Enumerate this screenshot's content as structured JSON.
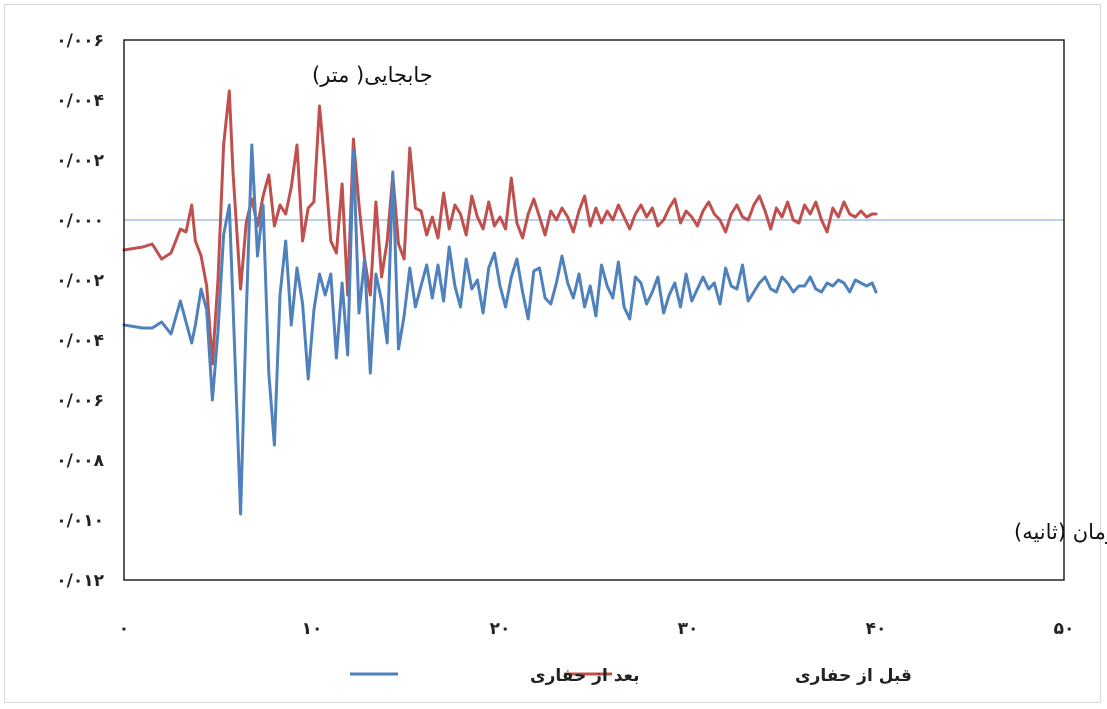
{
  "chart_data": {
    "type": "line",
    "y_annotation": "جابجایی( متر)",
    "x_annotation": "زمان (ثانیه)",
    "x_range": [
      0,
      50
    ],
    "y_range": [
      -0.012,
      0.006
    ],
    "x_ticks": [
      0,
      10,
      20,
      30,
      40,
      50
    ],
    "x_tick_labels": [
      "۰",
      "۱۰",
      "۲۰",
      "۳۰",
      "۴۰",
      "۵۰"
    ],
    "y_ticks": [
      0.006,
      0.004,
      0.002,
      0.0,
      -0.002,
      -0.004,
      -0.006,
      -0.008,
      -0.01,
      -0.012
    ],
    "y_tick_labels": [
      "۰/۰۰۶",
      "۰/۰۰۴",
      "۰/۰۰۲",
      "۰/۰۰۰",
      "۰/۰۰۲",
      "۰/۰۰۴",
      "۰/۰۰۶",
      "۰/۰۰۸",
      "۰/۰۱۰",
      "۰/۰۱۲"
    ],
    "zero_line_color": "#8eb4e3",
    "grid": false,
    "legend_position": "bottom",
    "series": [
      {
        "name": "قبل از حفاری",
        "color": "#c0504d",
        "x": [
          0,
          1,
          1.5,
          2,
          2.5,
          3,
          3.3,
          3.6,
          3.8,
          4.1,
          4.4,
          4.7,
          5.0,
          5.3,
          5.6,
          5.8,
          6.2,
          6.5,
          6.8,
          7.1,
          7.4,
          7.7,
          8.0,
          8.3,
          8.6,
          8.9,
          9.2,
          9.5,
          9.8,
          10.1,
          10.4,
          10.7,
          11.0,
          11.3,
          11.6,
          11.9,
          12.2,
          12.5,
          12.8,
          13.1,
          13.4,
          13.7,
          14.0,
          14.3,
          14.6,
          14.9,
          15.2,
          15.5,
          15.8,
          16.1,
          16.4,
          16.7,
          17.0,
          17.3,
          17.6,
          17.9,
          18.2,
          18.5,
          18.8,
          19.1,
          19.4,
          19.7,
          20.0,
          20.3,
          20.6,
          20.9,
          21.2,
          21.5,
          21.8,
          22.1,
          22.4,
          22.7,
          23.0,
          23.3,
          23.6,
          23.9,
          24.2,
          24.5,
          24.8,
          25.1,
          25.4,
          25.7,
          26.0,
          26.3,
          26.6,
          26.9,
          27.2,
          27.5,
          27.8,
          28.1,
          28.4,
          28.7,
          29.0,
          29.3,
          29.6,
          29.9,
          30.2,
          30.5,
          30.8,
          31.1,
          31.4,
          31.7,
          32.0,
          32.3,
          32.6,
          32.9,
          33.2,
          33.5,
          33.8,
          34.1,
          34.4,
          34.7,
          35.0,
          35.3,
          35.6,
          35.9,
          36.2,
          36.5,
          36.8,
          37.1,
          37.4,
          37.7,
          38.0,
          38.3,
          38.6,
          38.9,
          39.2,
          39.5,
          39.8,
          40.0
        ],
        "y": [
          -0.001,
          -0.0009,
          -0.0008,
          -0.0013,
          -0.0011,
          -0.0003,
          -0.0004,
          0.0005,
          -0.0007,
          -0.0012,
          -0.0022,
          -0.0048,
          -0.002,
          0.0025,
          0.0043,
          0.0016,
          -0.0023,
          -0.0001,
          0.0007,
          -0.0002,
          0.0008,
          0.0015,
          -0.0002,
          0.0005,
          0.0002,
          0.0011,
          0.0025,
          -0.0007,
          0.0004,
          0.0006,
          0.0038,
          0.0017,
          -0.0007,
          -0.0011,
          0.0012,
          -0.0025,
          0.0027,
          0.0005,
          -0.0013,
          -0.0025,
          0.0006,
          -0.0019,
          -0.0007,
          0.0015,
          -0.0008,
          -0.0013,
          0.0024,
          0.0004,
          0.0003,
          -0.0005,
          0.0001,
          -0.0006,
          0.0009,
          -0.0003,
          0.0005,
          0.0002,
          -0.0005,
          0.0008,
          0.0001,
          -0.0003,
          0.0006,
          -0.0002,
          0.0001,
          -0.0003,
          0.0014,
          -0.0001,
          -0.0006,
          0.0002,
          0.0007,
          0.0001,
          -0.0005,
          0.0003,
          0.0,
          0.0004,
          0.0001,
          -0.0004,
          0.0003,
          0.0008,
          -0.0002,
          0.0004,
          -0.0001,
          0.0003,
          0.0,
          0.0005,
          0.0001,
          -0.0003,
          0.0002,
          0.0005,
          0.0001,
          0.0004,
          -0.0002,
          0.0,
          0.0004,
          0.0007,
          -0.0001,
          0.0003,
          0.0001,
          -0.0002,
          0.0003,
          0.0006,
          0.0002,
          0.0,
          -0.0004,
          0.0002,
          0.0005,
          0.0001,
          0.0,
          0.0005,
          0.0008,
          0.0003,
          -0.0003,
          0.0004,
          0.0001,
          0.0006,
          0.0,
          -0.0001,
          0.0005,
          0.0002,
          0.0006,
          0.0,
          -0.0004,
          0.0004,
          0.0001,
          0.0006,
          0.0002,
          0.0001,
          0.0003,
          0.0001,
          0.0002,
          0.0002
        ]
      },
      {
        "name": "بعد از حفاری",
        "color": "#4f81bd",
        "x": [
          0,
          1,
          1.5,
          2,
          2.5,
          3,
          3.3,
          3.6,
          3.8,
          4.1,
          4.4,
          4.7,
          5.0,
          5.3,
          5.6,
          5.8,
          6.2,
          6.5,
          6.8,
          7.1,
          7.4,
          7.7,
          8.0,
          8.3,
          8.6,
          8.9,
          9.2,
          9.5,
          9.8,
          10.1,
          10.4,
          10.7,
          11.0,
          11.3,
          11.6,
          11.9,
          12.2,
          12.5,
          12.8,
          13.1,
          13.4,
          13.7,
          14.0,
          14.3,
          14.6,
          14.9,
          15.2,
          15.5,
          15.8,
          16.1,
          16.4,
          16.7,
          17.0,
          17.3,
          17.6,
          17.9,
          18.2,
          18.5,
          18.8,
          19.1,
          19.4,
          19.7,
          20.0,
          20.3,
          20.6,
          20.9,
          21.2,
          21.5,
          21.8,
          22.1,
          22.4,
          22.7,
          23.0,
          23.3,
          23.6,
          23.9,
          24.2,
          24.5,
          24.8,
          25.1,
          25.4,
          25.7,
          26.0,
          26.3,
          26.6,
          26.9,
          27.2,
          27.5,
          27.8,
          28.1,
          28.4,
          28.7,
          29.0,
          29.3,
          29.6,
          29.9,
          30.2,
          30.5,
          30.8,
          31.1,
          31.4,
          31.7,
          32.0,
          32.3,
          32.6,
          32.9,
          33.2,
          33.5,
          33.8,
          34.1,
          34.4,
          34.7,
          35.0,
          35.3,
          35.6,
          35.9,
          36.2,
          36.5,
          36.8,
          37.1,
          37.4,
          37.7,
          38.0,
          38.3,
          38.6,
          38.9,
          39.2,
          39.5,
          39.8,
          40.0
        ],
        "y": [
          -0.0035,
          -0.0036,
          -0.0036,
          -0.0034,
          -0.0038,
          -0.0027,
          -0.0034,
          -0.0041,
          -0.0035,
          -0.0023,
          -0.003,
          -0.006,
          -0.0037,
          -0.0005,
          0.0005,
          -0.0028,
          -0.0098,
          -0.0032,
          0.0025,
          -0.0012,
          0.0005,
          -0.0051,
          -0.0075,
          -0.0025,
          -0.0007,
          -0.0035,
          -0.0016,
          -0.0028,
          -0.0053,
          -0.003,
          -0.0018,
          -0.0025,
          -0.0018,
          -0.0046,
          -0.0021,
          -0.0045,
          0.0023,
          -0.0031,
          -0.0013,
          -0.0051,
          -0.0018,
          -0.0027,
          -0.0041,
          0.0016,
          -0.0043,
          -0.0032,
          -0.0016,
          -0.0029,
          -0.0022,
          -0.0015,
          -0.0026,
          -0.0015,
          -0.0027,
          -0.0009,
          -0.0022,
          -0.0029,
          -0.0013,
          -0.0023,
          -0.002,
          -0.0031,
          -0.0016,
          -0.0011,
          -0.0022,
          -0.0029,
          -0.0019,
          -0.0013,
          -0.0024,
          -0.0033,
          -0.0017,
          -0.0016,
          -0.0026,
          -0.0028,
          -0.0021,
          -0.0012,
          -0.0021,
          -0.0026,
          -0.0018,
          -0.0029,
          -0.0022,
          -0.0032,
          -0.0015,
          -0.0022,
          -0.0026,
          -0.0014,
          -0.0029,
          -0.0033,
          -0.0019,
          -0.0021,
          -0.0028,
          -0.0024,
          -0.0019,
          -0.0031,
          -0.0025,
          -0.0021,
          -0.0029,
          -0.0018,
          -0.0027,
          -0.0023,
          -0.0019,
          -0.0023,
          -0.0021,
          -0.0028,
          -0.0016,
          -0.0022,
          -0.0023,
          -0.0015,
          -0.0027,
          -0.0024,
          -0.0021,
          -0.0019,
          -0.0023,
          -0.0024,
          -0.0019,
          -0.0021,
          -0.0024,
          -0.0022,
          -0.0022,
          -0.0019,
          -0.0023,
          -0.0024,
          -0.0021,
          -0.0022,
          -0.002,
          -0.0021,
          -0.0024,
          -0.002,
          -0.0021,
          -0.0022,
          -0.0021,
          -0.0024
        ]
      }
    ]
  }
}
